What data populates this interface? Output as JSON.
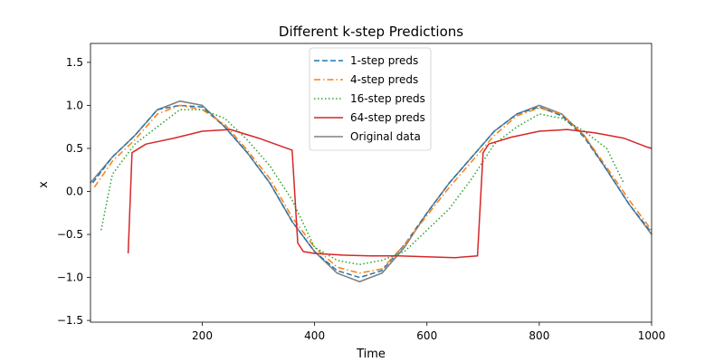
{
  "chart_data": {
    "type": "line",
    "title": "Different k-step Predictions",
    "xlabel": "Time",
    "ylabel": "x",
    "xlim": [
      1,
      1000
    ],
    "ylim": [
      -1.52,
      1.72
    ],
    "xticks": [
      200,
      400,
      600,
      800,
      1000
    ],
    "yticks": [
      -1.5,
      -1.0,
      -0.5,
      0.0,
      0.5,
      1.0,
      1.5
    ],
    "xtick_labels": [
      "200",
      "400",
      "600",
      "800",
      "1000"
    ],
    "ytick_labels": [
      "−1.5",
      "−1.0",
      "−0.5",
      "0.0",
      "0.5",
      "1.0",
      "1.5"
    ],
    "grid": false,
    "legend_position": "upper-center",
    "legend": [
      "1-step preds",
      "4-step preds",
      "16-step preds",
      "64-step preds",
      "Original data"
    ],
    "series": [
      {
        "name": "Original data",
        "color": "#808080",
        "style": "solid",
        "x": [
          1,
          40,
          80,
          120,
          160,
          200,
          240,
          280,
          320,
          360,
          400,
          440,
          480,
          520,
          560,
          600,
          640,
          680,
          720,
          760,
          800,
          840,
          880,
          920,
          960,
          1000
        ],
        "y": [
          0.1,
          0.4,
          0.65,
          0.95,
          1.05,
          1.0,
          0.75,
          0.45,
          0.1,
          -0.35,
          -0.7,
          -0.95,
          -1.05,
          -0.95,
          -0.65,
          -0.25,
          0.1,
          0.4,
          0.7,
          0.9,
          1.0,
          0.9,
          0.65,
          0.25,
          -0.15,
          -0.5
        ]
      },
      {
        "name": "1-step preds",
        "color": "#1f77b4",
        "style": "dashed",
        "x": [
          5,
          40,
          80,
          120,
          160,
          200,
          240,
          280,
          320,
          360,
          400,
          440,
          480,
          520,
          560,
          600,
          640,
          680,
          720,
          760,
          800,
          840,
          880,
          920,
          960,
          1000
        ],
        "y": [
          0.1,
          0.4,
          0.65,
          0.95,
          1.0,
          0.98,
          0.75,
          0.45,
          0.1,
          -0.35,
          -0.7,
          -0.92,
          -1.0,
          -0.92,
          -0.62,
          -0.25,
          0.1,
          0.4,
          0.7,
          0.9,
          0.98,
          0.88,
          0.63,
          0.25,
          -0.15,
          -0.48
        ]
      },
      {
        "name": "4-step preds",
        "color": "#ff7f0e",
        "style": "dashdot",
        "x": [
          8,
          40,
          80,
          120,
          160,
          200,
          240,
          280,
          320,
          360,
          400,
          440,
          480,
          520,
          560,
          600,
          640,
          680,
          720,
          760,
          800,
          840,
          880,
          920,
          960,
          1000
        ],
        "y": [
          0.05,
          0.35,
          0.6,
          0.9,
          1.0,
          0.95,
          0.78,
          0.48,
          0.15,
          -0.3,
          -0.65,
          -0.88,
          -0.95,
          -0.9,
          -0.62,
          -0.28,
          0.05,
          0.35,
          0.65,
          0.88,
          0.97,
          0.9,
          0.65,
          0.28,
          -0.1,
          -0.45
        ]
      },
      {
        "name": "16-step preds",
        "color": "#2ca02c",
        "style": "dotted",
        "x": [
          20,
          40,
          80,
          120,
          160,
          200,
          240,
          280,
          320,
          360,
          400,
          440,
          480,
          520,
          560,
          600,
          640,
          680,
          720,
          760,
          800,
          840,
          880,
          920,
          950
        ],
        "y": [
          -0.45,
          0.2,
          0.55,
          0.75,
          0.95,
          0.95,
          0.85,
          0.6,
          0.3,
          -0.1,
          -0.65,
          -0.8,
          -0.85,
          -0.8,
          -0.7,
          -0.45,
          -0.2,
          0.15,
          0.55,
          0.75,
          0.9,
          0.85,
          0.7,
          0.5,
          0.1
        ]
      },
      {
        "name": "64-step preds",
        "color": "#d62728",
        "style": "solid",
        "x": [
          68,
          75,
          100,
          150,
          200,
          250,
          300,
          360,
          370,
          380,
          400,
          450,
          500,
          550,
          600,
          650,
          690,
          700,
          710,
          750,
          800,
          850,
          900,
          950,
          990,
          1000
        ],
        "y": [
          -0.72,
          0.45,
          0.55,
          0.62,
          0.7,
          0.72,
          0.62,
          0.48,
          -0.6,
          -0.7,
          -0.72,
          -0.74,
          -0.75,
          -0.75,
          -0.76,
          -0.77,
          -0.75,
          0.45,
          0.55,
          0.63,
          0.7,
          0.72,
          0.68,
          0.62,
          0.52,
          0.5
        ]
      }
    ]
  }
}
